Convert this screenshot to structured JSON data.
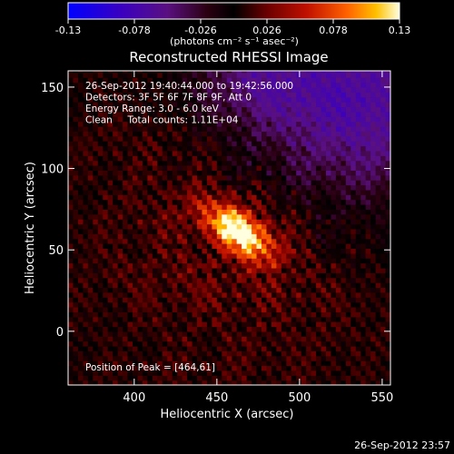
{
  "colorbar": {
    "min": -0.13,
    "max": 0.13,
    "tick_labels": [
      "-0.13",
      "-0.078",
      "-0.026",
      "0.026",
      "0.078",
      "0.13"
    ],
    "unit_label": "(photons cm⁻² s⁻¹ asec⁻²)",
    "stops": [
      {
        "v": 0.0,
        "c": "#0000ff"
      },
      {
        "v": 0.16,
        "c": "#3a00c0"
      },
      {
        "v": 0.3,
        "c": "#5a1080"
      },
      {
        "v": 0.42,
        "c": "#2a0010"
      },
      {
        "v": 0.5,
        "c": "#000000"
      },
      {
        "v": 0.6,
        "c": "#6a0000"
      },
      {
        "v": 0.72,
        "c": "#c01000"
      },
      {
        "v": 0.84,
        "c": "#ff6000"
      },
      {
        "v": 0.93,
        "c": "#ffc000"
      },
      {
        "v": 1.0,
        "c": "#ffffe0"
      }
    ]
  },
  "chart_data": {
    "type": "heatmap",
    "title": "Reconstructed RHESSI Image",
    "xlabel": "Heliocentric X (arcsec)",
    "ylabel": "Heliocentric Y (arcsec)",
    "xlim": [
      360,
      555
    ],
    "ylim": [
      -33,
      160
    ],
    "xticks": [
      400,
      450,
      500,
      550
    ],
    "yticks": [
      0,
      50,
      100,
      150
    ],
    "annotations": [
      "26-Sep-2012 19:40:44.000 to 19:42:56.000",
      "Detectors: 3F 5F 6F 7F 8F 9F, Att 0",
      "Energy Range: 3.0 - 6.0 keV",
      "Clean     Total counts: 1.11E+04"
    ],
    "peak_label": "Position of Peak = [464,61]",
    "peak": {
      "x": 464,
      "y": 61,
      "value": 0.13
    },
    "grid": false
  },
  "timestamp": "26-Sep-2012 23:57"
}
